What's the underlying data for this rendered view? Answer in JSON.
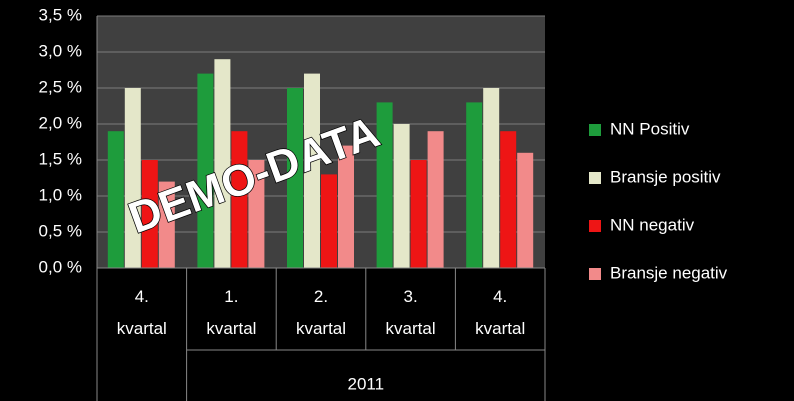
{
  "chart_data": {
    "type": "bar",
    "categories": [
      "4. kvartal",
      "1. kvartal",
      "2. kvartal",
      "3. kvartal",
      "4. kvartal"
    ],
    "category_groups": [
      {
        "label": "2011",
        "from": 1,
        "to": 4
      }
    ],
    "series": [
      {
        "name": "NN Positiv",
        "color": "#1e9c3c",
        "values": [
          1.9,
          2.7,
          2.5,
          2.3,
          2.3
        ]
      },
      {
        "name": "Bransje positiv",
        "color": "#e4e7c9",
        "values": [
          2.5,
          2.9,
          2.7,
          2.0,
          2.5
        ]
      },
      {
        "name": "NN negativ",
        "color": "#ee1515",
        "values": [
          1.5,
          1.9,
          1.3,
          1.5,
          1.9
        ]
      },
      {
        "name": "Bransje negativ",
        "color": "#f28a8a",
        "values": [
          1.2,
          1.5,
          1.7,
          1.9,
          1.6
        ]
      }
    ],
    "ylim": [
      0,
      3.5
    ],
    "yticks": [
      {
        "value": 0,
        "label": "0,0 %"
      },
      {
        "value": 0.5,
        "label": "0,5 %"
      },
      {
        "value": 1,
        "label": "1,0 %"
      },
      {
        "value": 1.5,
        "label": "1,5 %"
      },
      {
        "value": 2,
        "label": "2,0 %"
      },
      {
        "value": 2.5,
        "label": "2,5 %"
      },
      {
        "value": 3,
        "label": "3,0 %"
      },
      {
        "value": 3.5,
        "label": "3,5 %"
      }
    ],
    "grid": true,
    "legend": "right",
    "annotations": [
      {
        "text": "DEMO-DATA"
      }
    ]
  }
}
